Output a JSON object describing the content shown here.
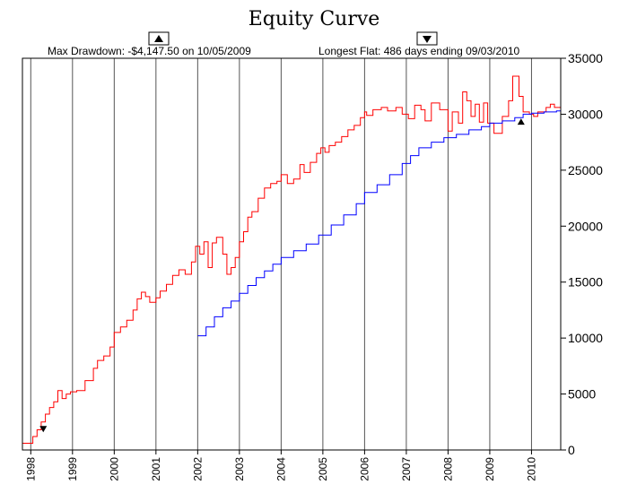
{
  "chart_data": {
    "type": "line",
    "title": "Equity Curve",
    "left_note": "Max Drawdown: -$4,147.50 on 10/05/2009",
    "right_note": "Longest Flat: 486 days ending 09/03/2010",
    "nav_left_icon": "up-triangle",
    "nav_right_icon": "down-triangle",
    "y_axis_position": "right",
    "ylim": [
      0,
      35000
    ],
    "y_ticks": [
      0,
      5000,
      10000,
      15000,
      20000,
      25000,
      30000,
      35000
    ],
    "xlim": [
      1997.8,
      2010.7
    ],
    "x_ticks": [
      1998,
      1999,
      2000,
      2001,
      2002,
      2003,
      2004,
      2005,
      2006,
      2007,
      2008,
      2009,
      2010
    ],
    "grid": "vertical",
    "markers": [
      {
        "label": "start of max drawdown",
        "shape": "down-triangle",
        "x": 1998.3,
        "y": 1900
      },
      {
        "label": "end of max drawdown",
        "shape": "up-triangle",
        "x": 2009.75,
        "y": 29300
      }
    ],
    "series": [
      {
        "color": "#ff0000",
        "x": [
          1997.8,
          1998.05,
          1998.15,
          1998.25,
          1998.35,
          1998.45,
          1998.55,
          1998.65,
          1998.75,
          1998.85,
          1998.95,
          1999.1,
          1999.3,
          1999.5,
          1999.6,
          1999.75,
          1999.9,
          2000.0,
          2000.15,
          2000.3,
          2000.45,
          2000.55,
          2000.65,
          2000.75,
          2000.85,
          2001.0,
          2001.1,
          2001.25,
          2001.4,
          2001.55,
          2001.7,
          2001.85,
          2001.95,
          2002.05,
          2002.15,
          2002.25,
          2002.35,
          2002.45,
          2002.6,
          2002.7,
          2002.8,
          2002.9,
          2003.0,
          2003.1,
          2003.2,
          2003.3,
          2003.45,
          2003.6,
          2003.75,
          2003.9,
          2004.0,
          2004.15,
          2004.3,
          2004.45,
          2004.55,
          2004.7,
          2004.85,
          2004.95,
          2005.05,
          2005.15,
          2005.3,
          2005.45,
          2005.6,
          2005.75,
          2005.9,
          2006.0,
          2006.05,
          2006.2,
          2006.4,
          2006.55,
          2006.75,
          2006.9,
          2007.05,
          2007.2,
          2007.35,
          2007.45,
          2007.6,
          2007.8,
          2008.0,
          2008.1,
          2008.25,
          2008.35,
          2008.45,
          2008.55,
          2008.65,
          2008.75,
          2008.85,
          2008.95,
          2009.1,
          2009.3,
          2009.45,
          2009.55,
          2009.7,
          2009.8,
          2009.95,
          2010.05,
          2010.15,
          2010.35,
          2010.45,
          2010.55,
          2010.7
        ],
        "values": [
          600,
          1200,
          1800,
          2500,
          3200,
          3800,
          4300,
          5300,
          4600,
          5000,
          5200,
          5300,
          6200,
          7300,
          8000,
          8400,
          9200,
          10500,
          11000,
          11600,
          12500,
          13500,
          14100,
          13700,
          13200,
          13600,
          14200,
          14800,
          15600,
          16100,
          15700,
          16800,
          18200,
          17500,
          18600,
          16300,
          18500,
          19000,
          17500,
          15700,
          16300,
          17200,
          18600,
          19500,
          20800,
          21300,
          22500,
          23400,
          23800,
          24000,
          24600,
          23800,
          24200,
          25500,
          24800,
          25700,
          26500,
          27000,
          26600,
          27200,
          27500,
          28000,
          28600,
          29000,
          29700,
          30200,
          29900,
          30400,
          30600,
          30300,
          30600,
          30000,
          29600,
          30800,
          30400,
          29400,
          31000,
          30400,
          28500,
          30200,
          29200,
          32000,
          31200,
          29800,
          30900,
          29300,
          31000,
          29200,
          28300,
          29800,
          31200,
          33400,
          31600,
          30200,
          30000,
          29800,
          30200,
          30600,
          30900,
          30600,
          30400
        ]
      },
      {
        "color": "#0000ff",
        "x": [
          2002.0,
          2002.2,
          2002.4,
          2002.6,
          2002.8,
          2003.0,
          2003.2,
          2003.4,
          2003.6,
          2003.8,
          2004.0,
          2004.3,
          2004.6,
          2004.9,
          2005.2,
          2005.5,
          2005.8,
          2006.0,
          2006.3,
          2006.6,
          2006.9,
          2007.1,
          2007.3,
          2007.6,
          2007.9,
          2008.2,
          2008.5,
          2008.8,
          2009.0,
          2009.3,
          2009.6,
          2009.8,
          2010.0,
          2010.3,
          2010.6,
          2010.7
        ],
        "values": [
          10200,
          11000,
          11900,
          12700,
          13300,
          14000,
          14700,
          15400,
          16000,
          16600,
          17200,
          17800,
          18400,
          19200,
          20100,
          21000,
          22000,
          23000,
          23700,
          24600,
          25600,
          26300,
          27000,
          27500,
          27900,
          28200,
          28600,
          28900,
          29200,
          29400,
          29700,
          30000,
          30100,
          30200,
          30300,
          30400
        ]
      }
    ]
  }
}
